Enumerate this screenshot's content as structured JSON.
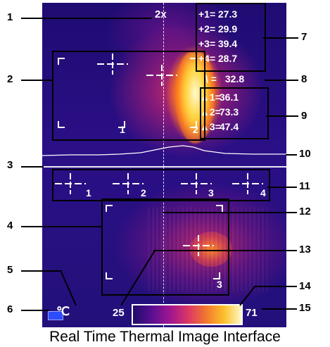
{
  "zoom": "2x",
  "callouts": [
    "1",
    "2",
    "3",
    "4",
    "5",
    "6",
    "7",
    "8",
    "9",
    "10",
    "11",
    "12",
    "13",
    "14",
    "15"
  ],
  "areas": {
    "top_box": {
      "left_label": "1",
      "right_label": "2"
    },
    "line_markers": [
      "1",
      "2",
      "3",
      "4"
    ],
    "bottom_box": {
      "label": "3"
    }
  },
  "point_readings": [
    {
      "symbol": "+1=",
      "value": "27.3"
    },
    {
      "symbol": "+2=",
      "value": "29.9"
    },
    {
      "symbol": "+3=",
      "value": "39.4"
    },
    {
      "symbol": "+4=",
      "value": "28.7"
    }
  ],
  "line_reading": {
    "symbol": "\\ =",
    "value": "32.8"
  },
  "area_readings": [
    {
      "symbol": "▲1=",
      "value": "36.1"
    },
    {
      "symbol": "▲2=",
      "value": "73.3"
    },
    {
      "symbol": "▲3=",
      "value": "47.4"
    }
  ],
  "unit": "℃",
  "scale": {
    "min": "25",
    "max": "71"
  },
  "caption": "Real Time Thermal Image Interface",
  "colors": {
    "palette_low": "#1e0b6a",
    "palette_high": "#fff7c8",
    "swatch": "#2d4bff"
  }
}
